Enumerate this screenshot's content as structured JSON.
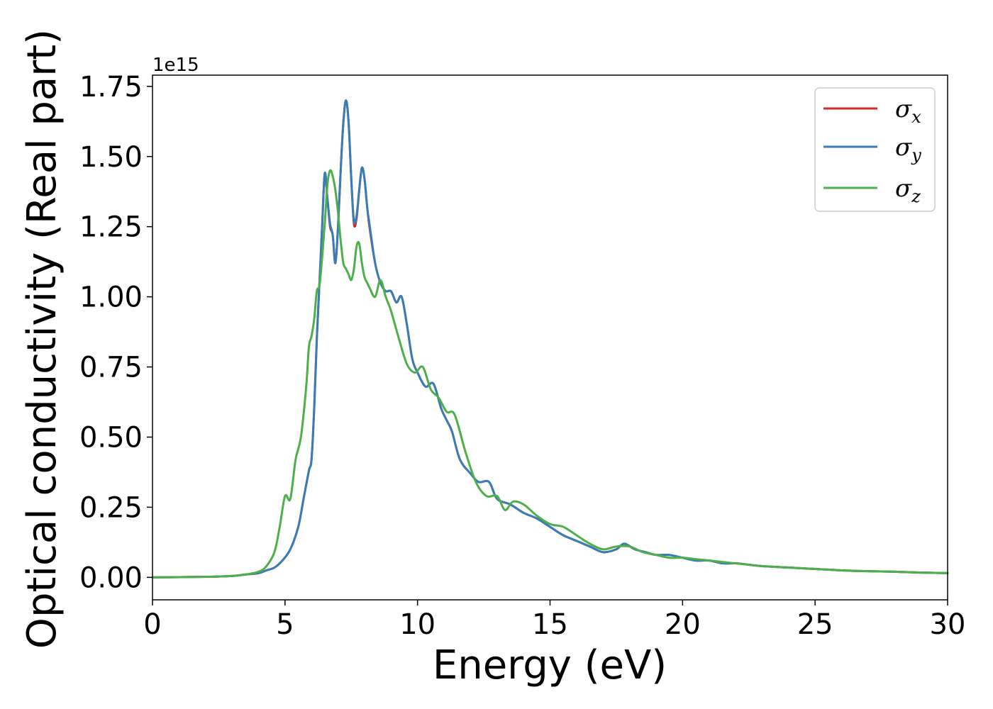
{
  "chart_data": {
    "type": "line",
    "xlabel": "Energy (eV)",
    "ylabel": "Optical conductivity (Real part)",
    "y_offset_label": "1e15",
    "xlim": [
      0,
      30
    ],
    "ylim": [
      -0.08,
      1.79
    ],
    "x_ticks": [
      0,
      5,
      10,
      15,
      20,
      25,
      30
    ],
    "x_tick_labels": [
      "0",
      "5",
      "10",
      "15",
      "20",
      "25",
      "30"
    ],
    "y_ticks": [
      0.0,
      0.25,
      0.5,
      0.75,
      1.0,
      1.25,
      1.5,
      1.75
    ],
    "y_tick_labels": [
      "0.00",
      "0.25",
      "0.50",
      "0.75",
      "1.00",
      "1.25",
      "1.50",
      "1.75"
    ],
    "grid": false,
    "legend_position": "top-right",
    "series": [
      {
        "name": "σx",
        "color": "#d62728",
        "x": [
          0,
          2,
          3,
          3.5,
          4,
          4.3,
          4.6,
          4.9,
          5.2,
          5.5,
          5.7,
          5.9,
          6.0,
          6.1,
          6.2,
          6.3,
          6.4,
          6.5,
          6.6,
          6.7,
          6.8,
          6.9,
          7.0,
          7.1,
          7.2,
          7.3,
          7.4,
          7.5,
          7.6,
          7.7,
          7.8,
          7.9,
          8.0,
          8.1,
          8.2,
          8.4,
          8.6,
          8.8,
          9.0,
          9.2,
          9.4,
          9.6,
          9.8,
          10.0,
          10.3,
          10.6,
          10.9,
          11.1,
          11.3,
          11.6,
          12.0,
          12.3,
          12.7,
          13.0,
          13.5,
          14.0,
          14.5,
          15.0,
          15.5,
          16.0,
          16.5,
          17.0,
          17.5,
          17.8,
          18.2,
          18.6,
          19.0,
          19.5,
          20.0,
          20.5,
          21.0,
          21.5,
          22.0,
          22.5,
          23.0,
          24.0,
          25.0,
          26.0,
          27.0,
          28.0,
          29.0,
          30.0
        ],
        "values": [
          0.0,
          0.002,
          0.005,
          0.01,
          0.015,
          0.025,
          0.035,
          0.06,
          0.1,
          0.18,
          0.28,
          0.38,
          0.42,
          0.6,
          0.85,
          1.05,
          1.25,
          1.44,
          1.35,
          1.25,
          1.22,
          1.12,
          1.25,
          1.45,
          1.62,
          1.7,
          1.62,
          1.42,
          1.26,
          1.28,
          1.38,
          1.46,
          1.42,
          1.32,
          1.24,
          1.12,
          1.05,
          1.02,
          1.02,
          0.98,
          1.0,
          0.9,
          0.78,
          0.73,
          0.68,
          0.69,
          0.6,
          0.56,
          0.52,
          0.42,
          0.37,
          0.34,
          0.34,
          0.28,
          0.26,
          0.23,
          0.21,
          0.18,
          0.15,
          0.13,
          0.11,
          0.09,
          0.1,
          0.12,
          0.1,
          0.09,
          0.08,
          0.08,
          0.07,
          0.06,
          0.06,
          0.05,
          0.05,
          0.045,
          0.04,
          0.035,
          0.03,
          0.025,
          0.022,
          0.02,
          0.017,
          0.015
        ]
      },
      {
        "name": "σy",
        "color": "#377eb8",
        "x": [
          0,
          2,
          3,
          3.5,
          4,
          4.3,
          4.6,
          4.9,
          5.2,
          5.5,
          5.7,
          5.9,
          6.0,
          6.1,
          6.2,
          6.3,
          6.4,
          6.5,
          6.6,
          6.7,
          6.8,
          6.9,
          7.0,
          7.1,
          7.2,
          7.3,
          7.4,
          7.5,
          7.6,
          7.7,
          7.8,
          7.9,
          8.0,
          8.1,
          8.2,
          8.4,
          8.6,
          8.8,
          9.0,
          9.2,
          9.4,
          9.6,
          9.8,
          10.0,
          10.3,
          10.6,
          10.9,
          11.1,
          11.3,
          11.6,
          12.0,
          12.3,
          12.7,
          13.0,
          13.5,
          14.0,
          14.5,
          15.0,
          15.5,
          16.0,
          16.5,
          17.0,
          17.5,
          17.8,
          18.2,
          18.6,
          19.0,
          19.5,
          20.0,
          20.5,
          21.0,
          21.5,
          22.0,
          22.5,
          23.0,
          24.0,
          25.0,
          26.0,
          27.0,
          28.0,
          29.0,
          30.0
        ],
        "values": [
          0.0,
          0.002,
          0.005,
          0.01,
          0.015,
          0.025,
          0.035,
          0.06,
          0.1,
          0.18,
          0.28,
          0.38,
          0.42,
          0.6,
          0.85,
          1.05,
          1.25,
          1.44,
          1.35,
          1.26,
          1.22,
          1.12,
          1.25,
          1.45,
          1.62,
          1.7,
          1.62,
          1.42,
          1.27,
          1.29,
          1.38,
          1.46,
          1.42,
          1.32,
          1.25,
          1.12,
          1.05,
          1.02,
          1.02,
          0.98,
          1.0,
          0.9,
          0.78,
          0.73,
          0.68,
          0.69,
          0.6,
          0.56,
          0.52,
          0.42,
          0.37,
          0.34,
          0.34,
          0.28,
          0.26,
          0.23,
          0.21,
          0.18,
          0.15,
          0.13,
          0.11,
          0.09,
          0.1,
          0.12,
          0.1,
          0.09,
          0.08,
          0.08,
          0.07,
          0.06,
          0.06,
          0.05,
          0.05,
          0.045,
          0.04,
          0.035,
          0.03,
          0.025,
          0.022,
          0.02,
          0.017,
          0.015
        ]
      },
      {
        "name": "σz",
        "color": "#4daf4a",
        "x": [
          0,
          2,
          3,
          3.5,
          4,
          4.3,
          4.6,
          4.8,
          5.0,
          5.2,
          5.4,
          5.6,
          5.8,
          5.9,
          6.0,
          6.1,
          6.2,
          6.3,
          6.4,
          6.5,
          6.6,
          6.7,
          6.8,
          6.9,
          7.0,
          7.1,
          7.2,
          7.3,
          7.4,
          7.5,
          7.6,
          7.7,
          7.8,
          7.9,
          8.0,
          8.1,
          8.2,
          8.4,
          8.6,
          8.8,
          9.0,
          9.3,
          9.6,
          9.9,
          10.2,
          10.5,
          10.8,
          11.1,
          11.4,
          11.8,
          12.2,
          12.6,
          13.0,
          13.3,
          13.6,
          14.0,
          14.5,
          15.0,
          15.5,
          16.0,
          16.5,
          17.0,
          17.5,
          18.0,
          18.5,
          19.0,
          19.5,
          20.0,
          20.5,
          21.0,
          21.5,
          22.0,
          22.5,
          23.0,
          24.0,
          25.0,
          26.0,
          27.0,
          28.0,
          29.0,
          30.0
        ],
        "values": [
          0.0,
          0.002,
          0.005,
          0.01,
          0.02,
          0.04,
          0.09,
          0.18,
          0.29,
          0.28,
          0.42,
          0.5,
          0.68,
          0.82,
          0.86,
          0.92,
          1.02,
          1.04,
          1.14,
          1.26,
          1.4,
          1.45,
          1.43,
          1.38,
          1.3,
          1.2,
          1.12,
          1.1,
          1.08,
          1.06,
          1.1,
          1.18,
          1.19,
          1.12,
          1.07,
          1.05,
          1.03,
          1.0,
          1.06,
          1.0,
          0.95,
          0.85,
          0.76,
          0.73,
          0.75,
          0.67,
          0.64,
          0.59,
          0.58,
          0.45,
          0.34,
          0.29,
          0.29,
          0.24,
          0.27,
          0.26,
          0.22,
          0.19,
          0.18,
          0.15,
          0.12,
          0.1,
          0.11,
          0.11,
          0.09,
          0.08,
          0.07,
          0.07,
          0.065,
          0.06,
          0.055,
          0.05,
          0.045,
          0.04,
          0.035,
          0.03,
          0.025,
          0.022,
          0.02,
          0.017,
          0.015
        ]
      }
    ]
  }
}
